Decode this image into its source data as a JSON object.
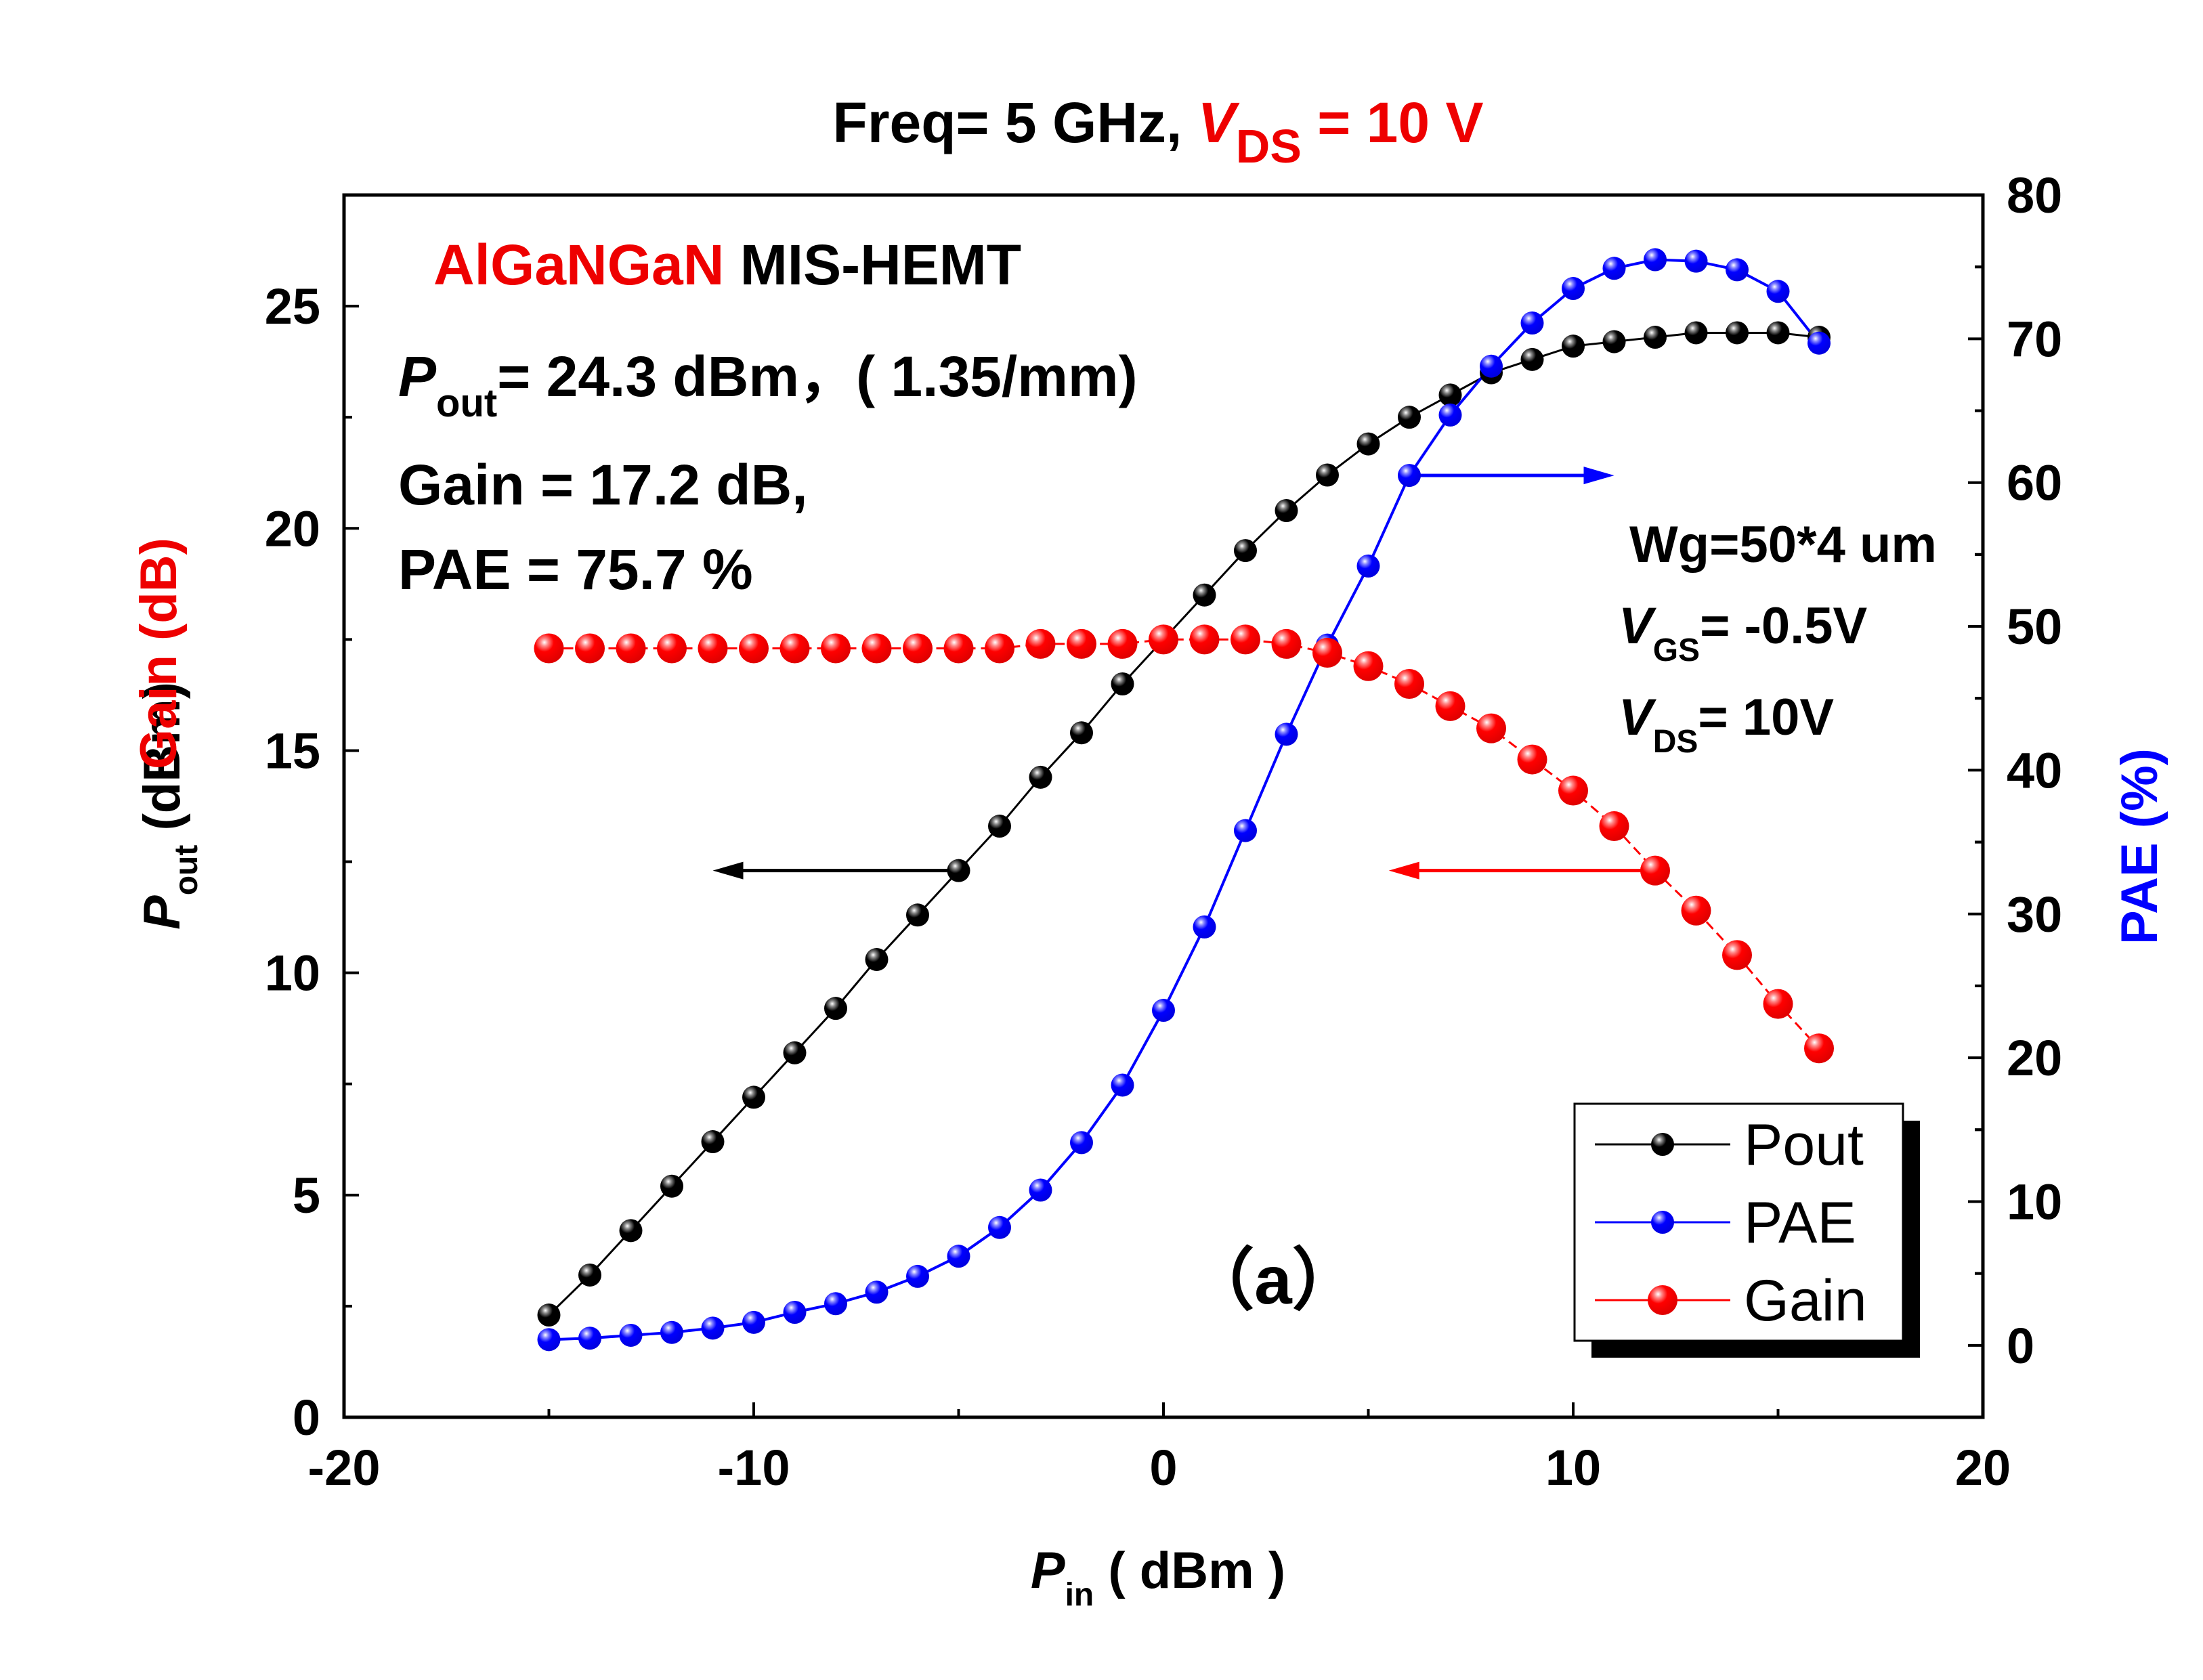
{
  "chart_data": {
    "type": "line",
    "title": {
      "prefix": "Freq= 5 GHz, ",
      "vds_label": "V",
      "vds_sub": "DS",
      "vds_value": " = 10 V"
    },
    "xlabel": {
      "main": "P",
      "sub": "in",
      "rest": " ( dBm )"
    },
    "ylabel_left": {
      "gain": "Gain (dB)",
      "pout_main": "P",
      "pout_sub": "out",
      "pout_rest": " (dBm)"
    },
    "ylabel_right": "PAE (%)",
    "xlim": [
      -20,
      20
    ],
    "ylim_left": [
      0,
      27.5
    ],
    "ylim_right": [
      -5,
      80
    ],
    "xticks": [
      "-20",
      "-10",
      "0",
      "10",
      "20"
    ],
    "yticks_left": [
      "0",
      "5",
      "10",
      "15",
      "20",
      "25"
    ],
    "yticks_right": [
      "0",
      "10",
      "20",
      "30",
      "40",
      "50",
      "60",
      "70",
      "80"
    ],
    "x": [
      -15,
      -14,
      -13,
      -12,
      -11,
      -10,
      -9,
      -8,
      -7,
      -6,
      -5,
      -4,
      -3,
      -2,
      -1,
      0,
      1,
      2,
      3,
      4,
      5,
      6,
      7,
      8,
      9,
      10,
      11,
      12,
      13,
      14,
      15,
      16
    ],
    "series": [
      {
        "name": "Pout",
        "axis": "left",
        "color": "#000000",
        "values": [
          2.3,
          3.2,
          4.2,
          5.2,
          6.2,
          7.2,
          8.2,
          9.2,
          10.3,
          11.3,
          12.3,
          13.3,
          14.4,
          15.4,
          16.5,
          17.5,
          18.5,
          19.5,
          20.4,
          21.2,
          21.9,
          22.5,
          23.0,
          23.5,
          23.8,
          24.1,
          24.2,
          24.3,
          24.4,
          24.4,
          24.4,
          24.3
        ]
      },
      {
        "name": "PAE",
        "axis": "right",
        "color": "#0000ff",
        "values": [
          0.4,
          0.5,
          0.7,
          0.9,
          1.2,
          1.6,
          2.3,
          2.9,
          3.7,
          4.8,
          6.2,
          8.2,
          10.8,
          14.1,
          18.1,
          23.3,
          29.1,
          35.8,
          42.5,
          48.7,
          54.2,
          60.5,
          64.7,
          68.1,
          71.1,
          73.5,
          74.9,
          75.5,
          75.4,
          74.8,
          73.3,
          69.7
        ]
      },
      {
        "name": "Gain",
        "axis": "left",
        "color": "#ff0000",
        "values": [
          17.3,
          17.3,
          17.3,
          17.3,
          17.3,
          17.3,
          17.3,
          17.3,
          17.3,
          17.3,
          17.3,
          17.3,
          17.4,
          17.4,
          17.4,
          17.5,
          17.5,
          17.5,
          17.4,
          17.2,
          16.9,
          16.5,
          16.0,
          15.5,
          14.8,
          14.1,
          13.3,
          12.3,
          11.4,
          10.4,
          9.3,
          8.3
        ]
      }
    ],
    "legend": {
      "placement": "bottom-right",
      "items": [
        "Pout",
        "PAE",
        "Gain"
      ]
    },
    "annotations": {
      "device_red": "AlGaNGaN",
      "device_black": " MIS-HEMT",
      "pout_main": "P",
      "pout_sub": "out",
      "pout_rest": "=  24.3 dBm，( 1.35/mm)",
      "gain_line": "Gain = 17.2 dB,",
      "pae_line": "PAE = 75.7 %",
      "wg": "Wg=50*4 um",
      "vgs_main": "V",
      "vgs_sub": "GS",
      "vgs_rest": "= -0.5V",
      "vds_main": "V",
      "vds_sub": "DS",
      "vds_rest": "= 10V",
      "panel": "（a）"
    },
    "arrows": [
      {
        "series": "Pout",
        "direction": "left",
        "color": "#000000",
        "from_x": -5,
        "to_x": -11,
        "y_left": 12.3
      },
      {
        "series": "Gain",
        "direction": "left",
        "color": "#ff0000",
        "from_x": 12,
        "to_x": 5.5,
        "y_left": 12.3
      },
      {
        "series": "PAE",
        "direction": "right",
        "color": "#0000ff",
        "from_x": 6,
        "to_x": 11,
        "y_right": 60.5
      }
    ],
    "grid": false
  }
}
